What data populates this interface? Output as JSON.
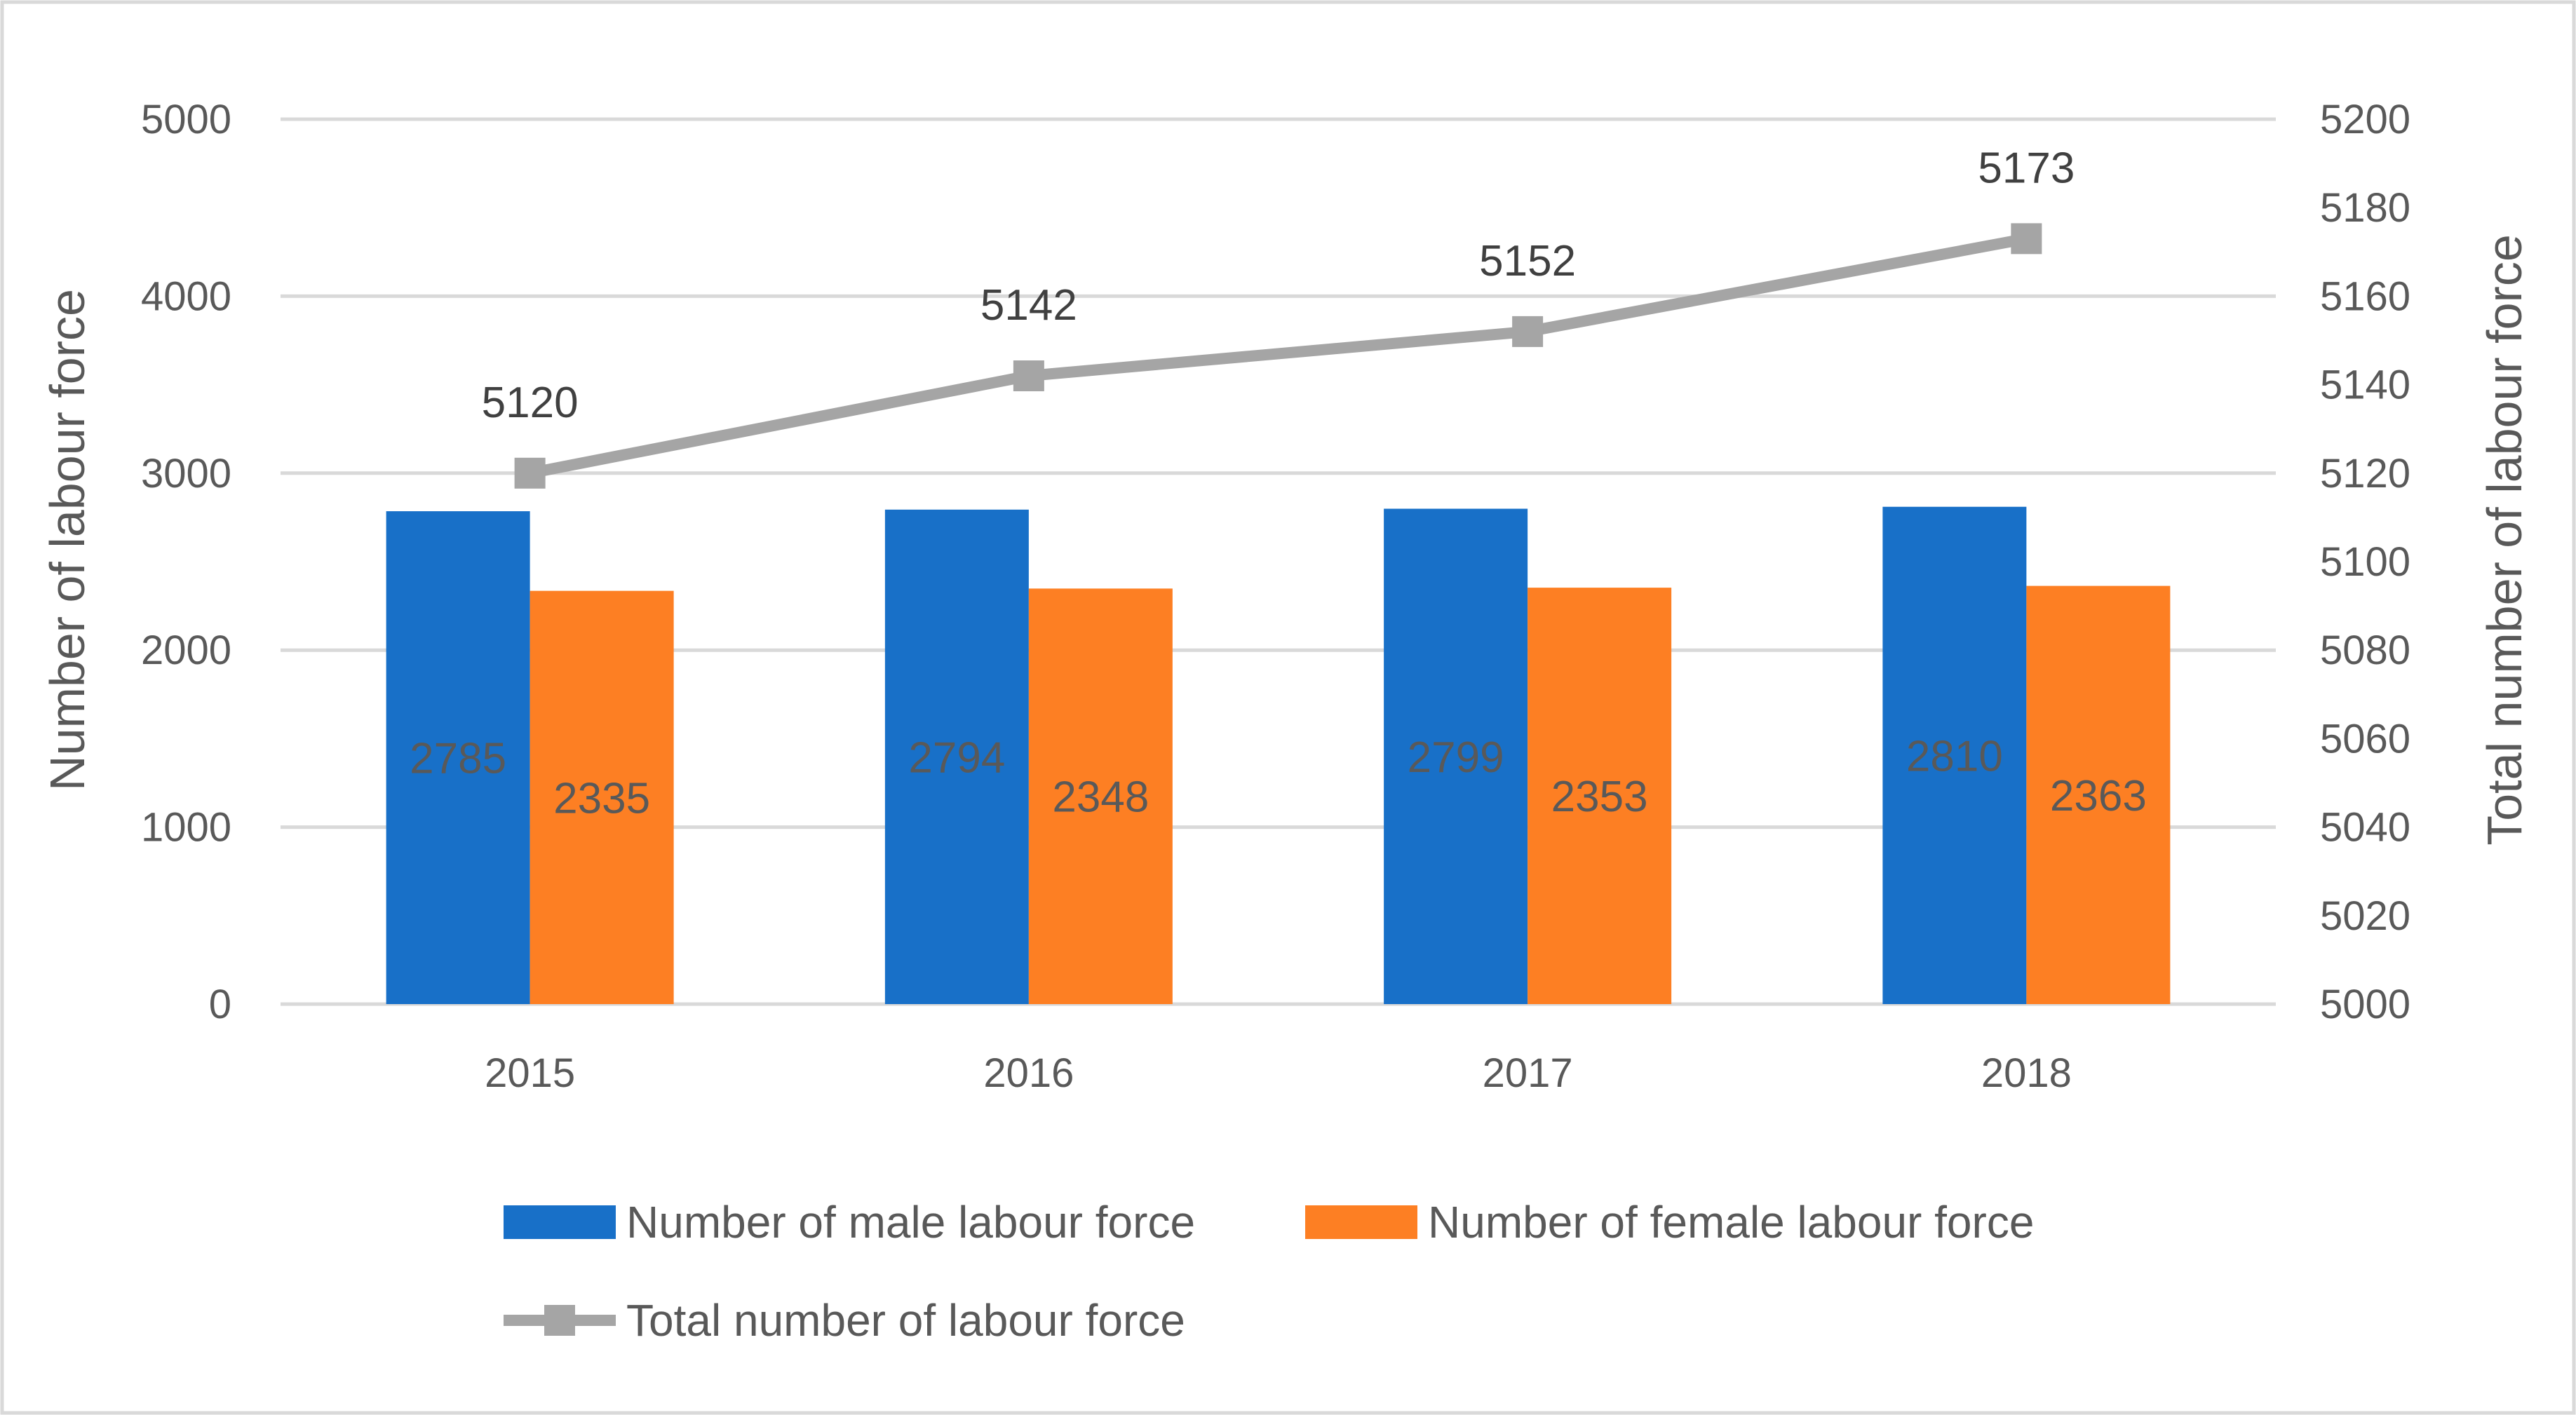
{
  "chart_data": {
    "type": "bar",
    "categories": [
      "2015",
      "2016",
      "2017",
      "2018"
    ],
    "series": [
      {
        "name": "Number of male labour force",
        "type": "bar",
        "axis": "left",
        "color": "#1870c8",
        "values": [
          2785,
          2794,
          2799,
          2810
        ]
      },
      {
        "name": "Number of female labour force",
        "type": "bar",
        "axis": "left",
        "color": "#fd7f23",
        "values": [
          2335,
          2348,
          2353,
          2363
        ]
      },
      {
        "name": "Total number of labour force",
        "type": "line",
        "axis": "right",
        "color": "#a5a5a5",
        "values": [
          5120,
          5142,
          5152,
          5173
        ]
      }
    ],
    "ylabel": "Number of labour force",
    "y2label": "Total number of labour force",
    "ylim": [
      0,
      5000
    ],
    "yticks": [
      "0",
      "1000",
      "2000",
      "3000",
      "4000",
      "5000"
    ],
    "y2lim": [
      5000,
      5200
    ],
    "y2ticks": [
      "5000",
      "5020",
      "5040",
      "5060",
      "5080",
      "5100",
      "5120",
      "5140",
      "5160",
      "5180",
      "5200"
    ],
    "grid": true,
    "legend": "bottom"
  }
}
